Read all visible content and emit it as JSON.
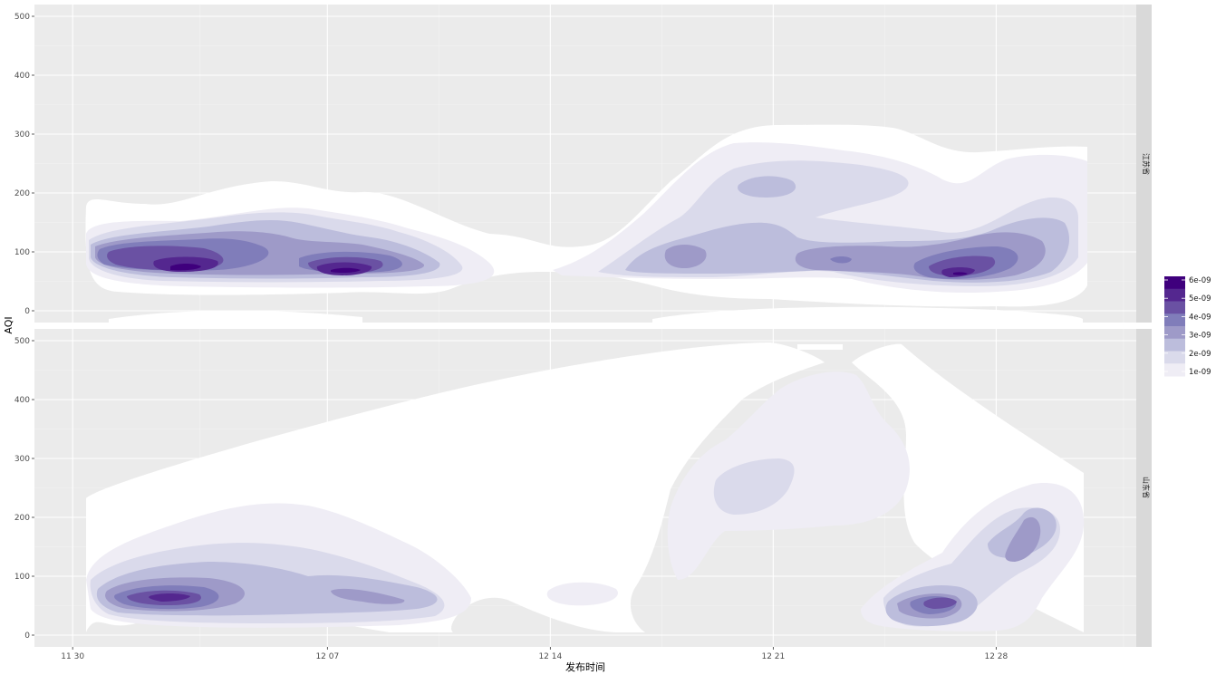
{
  "chart_data": {
    "type": "density_2d_filled_faceted",
    "xlabel": "发布时间",
    "ylabel": "AQI",
    "x_ticks": [
      "11-30",
      "12-07",
      "12-14",
      "12-21",
      "12-28"
    ],
    "x_tick_labels": [
      "11 30",
      "12 07",
      "12 14",
      "12 21",
      "12 28"
    ],
    "x_range": [
      "2019-11-29",
      "2020-01-02"
    ],
    "y_ticks": [
      0,
      100,
      200,
      300,
      400,
      500
    ],
    "y_tick_labels": [
      "0",
      "100",
      "200",
      "300",
      "400",
      "500"
    ],
    "ylim": [
      -20,
      520
    ],
    "grid": true,
    "facets": [
      {
        "label": "江苏省",
        "hotspots": [
          {
            "x": "12-04",
            "y": 72,
            "level": 6
          },
          {
            "x": "12-10",
            "y": 65,
            "level": 6
          },
          {
            "x": "12-28",
            "y": 60,
            "level": 6
          },
          {
            "x": "12-20",
            "y": 80,
            "level": 3
          },
          {
            "x": "12-25",
            "y": 85,
            "level": 3
          },
          {
            "x": "12-22",
            "y": 215,
            "level": 3
          }
        ]
      },
      {
        "label": "山东省",
        "hotspots": [
          {
            "x": "12-04",
            "y": 65,
            "level": 6
          },
          {
            "x": "12-10",
            "y": 60,
            "level": 3
          },
          {
            "x": "12-28",
            "y": 52,
            "level": 4
          },
          {
            "x": "12-30",
            "y": 155,
            "level": 3
          },
          {
            "x": "12-22",
            "y": 250,
            "level": 2
          }
        ]
      }
    ],
    "legend": {
      "position": "right",
      "labels": [
        "6e-09",
        "5e-09",
        "4e-09",
        "3e-09",
        "2e-09",
        "1e-09"
      ],
      "colors": [
        "#3f007d",
        "#54278f",
        "#6a51a3",
        "#807dba",
        "#9e9ac8",
        "#bcbddc",
        "#dadaeb",
        "#efedf5"
      ]
    }
  }
}
